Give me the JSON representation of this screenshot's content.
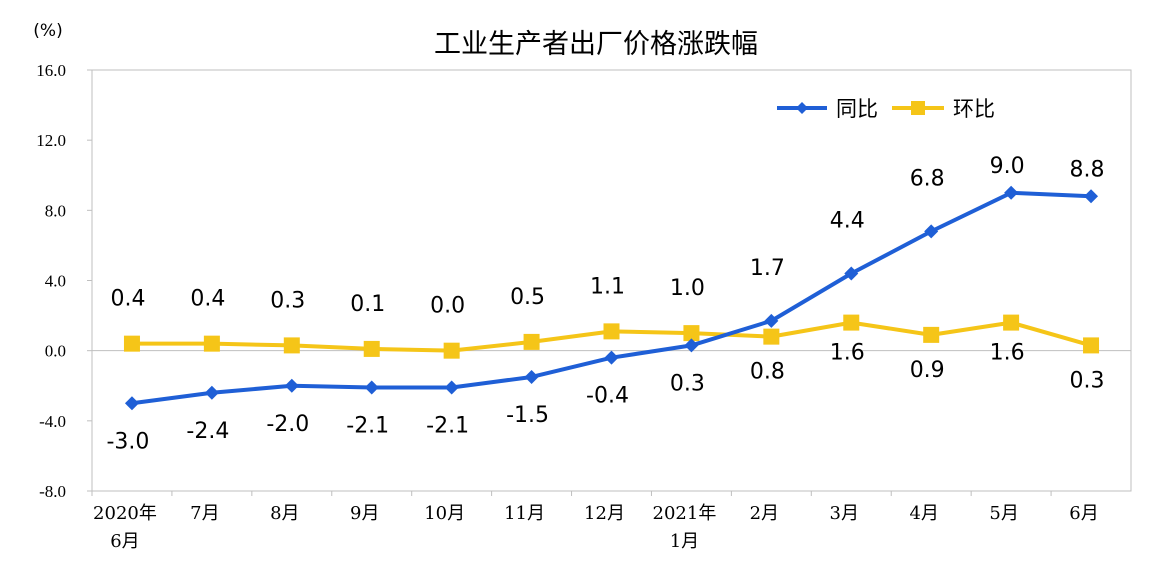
{
  "chart_data": {
    "type": "line",
    "title": "工业生产者出厂价格涨跌幅",
    "unit_label": "(%)",
    "categories": [
      [
        "2020年",
        "6月"
      ],
      [
        "7月"
      ],
      [
        "8月"
      ],
      [
        "9月"
      ],
      [
        "10月"
      ],
      [
        "11月"
      ],
      [
        "12月"
      ],
      [
        "2021年",
        "1月"
      ],
      [
        "2月"
      ],
      [
        "3月"
      ],
      [
        "4月"
      ],
      [
        "5月"
      ],
      [
        "6月"
      ]
    ],
    "y_ticks": [
      "16.0",
      "12.0",
      "8.0",
      "4.0",
      "0.0",
      "-4.0",
      "-8.0"
    ],
    "ylim": [
      -8,
      16
    ],
    "grid": false,
    "legend_position": "top-right",
    "series": [
      {
        "name": "同比",
        "color": "#1f5fd6",
        "marker": "diamond",
        "values": [
          -3.0,
          -2.4,
          -2.0,
          -2.1,
          -2.1,
          -1.5,
          -0.4,
          0.3,
          1.7,
          4.4,
          6.8,
          9.0,
          8.8
        ],
        "labels": [
          "-3.0",
          "-2.4",
          "-2.0",
          "-2.1",
          "-2.1",
          "-1.5",
          "-0.4",
          "0.3",
          "1.7",
          "4.4",
          "6.8",
          "9.0",
          "8.8"
        ]
      },
      {
        "name": "环比",
        "color": "#f5c518",
        "marker": "square",
        "values": [
          0.4,
          0.4,
          0.3,
          0.1,
          0.0,
          0.5,
          1.1,
          1.0,
          0.8,
          1.6,
          0.9,
          1.6,
          0.3
        ],
        "labels": [
          "0.4",
          "0.4",
          "0.3",
          "0.1",
          "0.0",
          "0.5",
          "1.1",
          "1.0",
          "0.8",
          "1.6",
          "0.9",
          "1.6",
          "0.3"
        ]
      }
    ]
  }
}
